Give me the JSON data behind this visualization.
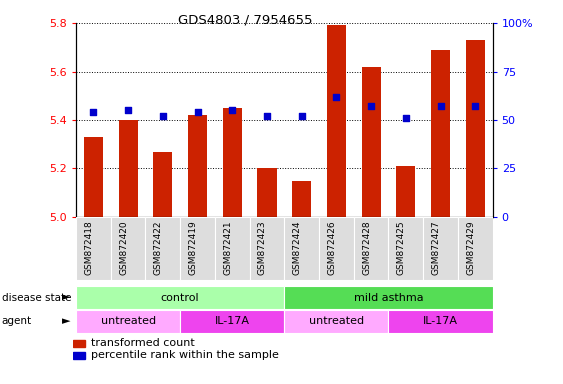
{
  "title": "GDS4803 / 7954655",
  "samples": [
    "GSM872418",
    "GSM872420",
    "GSM872422",
    "GSM872419",
    "GSM872421",
    "GSM872423",
    "GSM872424",
    "GSM872426",
    "GSM872428",
    "GSM872425",
    "GSM872427",
    "GSM872429"
  ],
  "red_values": [
    5.33,
    5.4,
    5.27,
    5.42,
    5.45,
    5.2,
    5.15,
    5.79,
    5.62,
    5.21,
    5.69,
    5.73
  ],
  "blue_values": [
    54,
    55,
    52,
    54,
    55,
    52,
    52,
    62,
    57,
    51,
    57,
    57
  ],
  "ymin": 5.0,
  "ymax": 5.8,
  "yticks_red": [
    5.0,
    5.2,
    5.4,
    5.6,
    5.8
  ],
  "yticks_blue": [
    0,
    25,
    50,
    75,
    100
  ],
  "disease_state_groups": [
    {
      "label": "control",
      "start": 0,
      "end": 6,
      "color": "#AAFFAA"
    },
    {
      "label": "mild asthma",
      "start": 6,
      "end": 12,
      "color": "#55DD55"
    }
  ],
  "agent_groups": [
    {
      "label": "untreated",
      "start": 0,
      "end": 3,
      "color": "#FFAAFF"
    },
    {
      "label": "IL-17A",
      "start": 3,
      "end": 6,
      "color": "#EE44EE"
    },
    {
      "label": "untreated",
      "start": 6,
      "end": 9,
      "color": "#FFAAFF"
    },
    {
      "label": "IL-17A",
      "start": 9,
      "end": 12,
      "color": "#EE44EE"
    }
  ],
  "bar_color": "#CC2200",
  "dot_color": "#0000CC",
  "bar_width": 0.55,
  "axis_bg_color": "#FFFFFF",
  "tick_bg_color": "#DDDDDD"
}
